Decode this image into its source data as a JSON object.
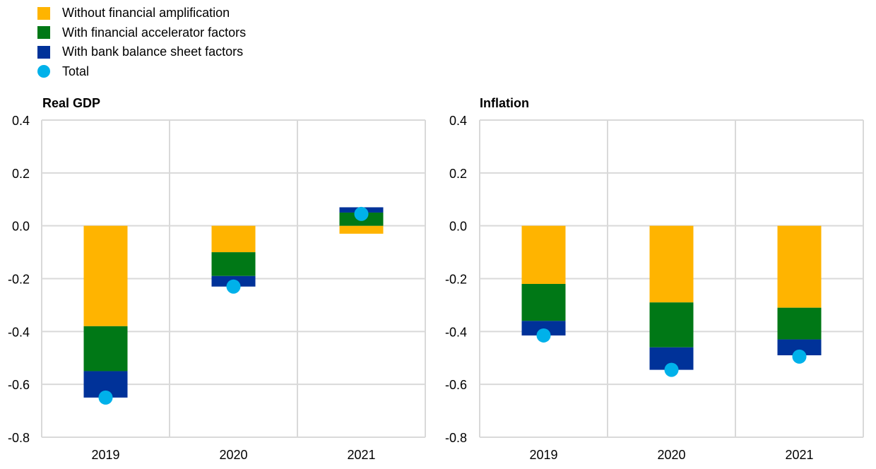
{
  "legend": [
    {
      "label": "Without financial amplification",
      "color": "#FFB400",
      "shape": "square"
    },
    {
      "label": "With financial accelerator factors",
      "color": "#007816",
      "shape": "square"
    },
    {
      "label": "With bank balance sheet factors",
      "color": "#003299",
      "shape": "square"
    },
    {
      "label": "Total",
      "color": "#00B1EA",
      "shape": "circle"
    }
  ],
  "chart_data": [
    {
      "type": "bar",
      "stacked": true,
      "title": "Real GDP",
      "xlabel": "",
      "ylabel": "",
      "categories": [
        "2019",
        "2020",
        "2021"
      ],
      "ylim": [
        -0.8,
        0.4
      ],
      "yticks": [
        "0.4",
        "0.2",
        "0.0",
        "-0.2",
        "-0.4",
        "-0.6",
        "-0.8"
      ],
      "ytick_values": [
        0.4,
        0.2,
        0.0,
        -0.2,
        -0.4,
        -0.6,
        -0.8
      ],
      "grid": true,
      "legend_position": "top-left",
      "series": [
        {
          "name": "Without financial amplification",
          "type": "bar",
          "values": [
            -0.38,
            -0.1,
            -0.03
          ]
        },
        {
          "name": "With financial accelerator factors",
          "type": "bar",
          "values": [
            -0.17,
            -0.09,
            0.05
          ]
        },
        {
          "name": "With bank balance sheet factors",
          "type": "bar",
          "values": [
            -0.1,
            -0.04,
            0.02
          ]
        },
        {
          "name": "Total",
          "type": "scatter",
          "values": [
            -0.65,
            -0.23,
            0.045
          ]
        }
      ]
    },
    {
      "type": "bar",
      "stacked": true,
      "title": "Inflation",
      "xlabel": "",
      "ylabel": "",
      "categories": [
        "2019",
        "2020",
        "2021"
      ],
      "ylim": [
        -0.8,
        0.4
      ],
      "yticks": [
        "0.4",
        "0.2",
        "0.0",
        "-0.2",
        "-0.4",
        "-0.6",
        "-0.8"
      ],
      "ytick_values": [
        0.4,
        0.2,
        0.0,
        -0.2,
        -0.4,
        -0.6,
        -0.8
      ],
      "grid": true,
      "legend_position": "top-left",
      "series": [
        {
          "name": "Without financial amplification",
          "type": "bar",
          "values": [
            -0.22,
            -0.29,
            -0.31
          ]
        },
        {
          "name": "With financial accelerator factors",
          "type": "bar",
          "values": [
            -0.14,
            -0.17,
            -0.12
          ]
        },
        {
          "name": "With bank balance sheet factors",
          "type": "bar",
          "values": [
            -0.055,
            -0.085,
            -0.06
          ]
        },
        {
          "name": "Total",
          "type": "scatter",
          "values": [
            -0.415,
            -0.545,
            -0.495
          ]
        }
      ]
    }
  ],
  "colors": {
    "grid": "#D9D9D9",
    "series": [
      "#FFB400",
      "#007816",
      "#003299",
      "#00B1EA"
    ]
  }
}
